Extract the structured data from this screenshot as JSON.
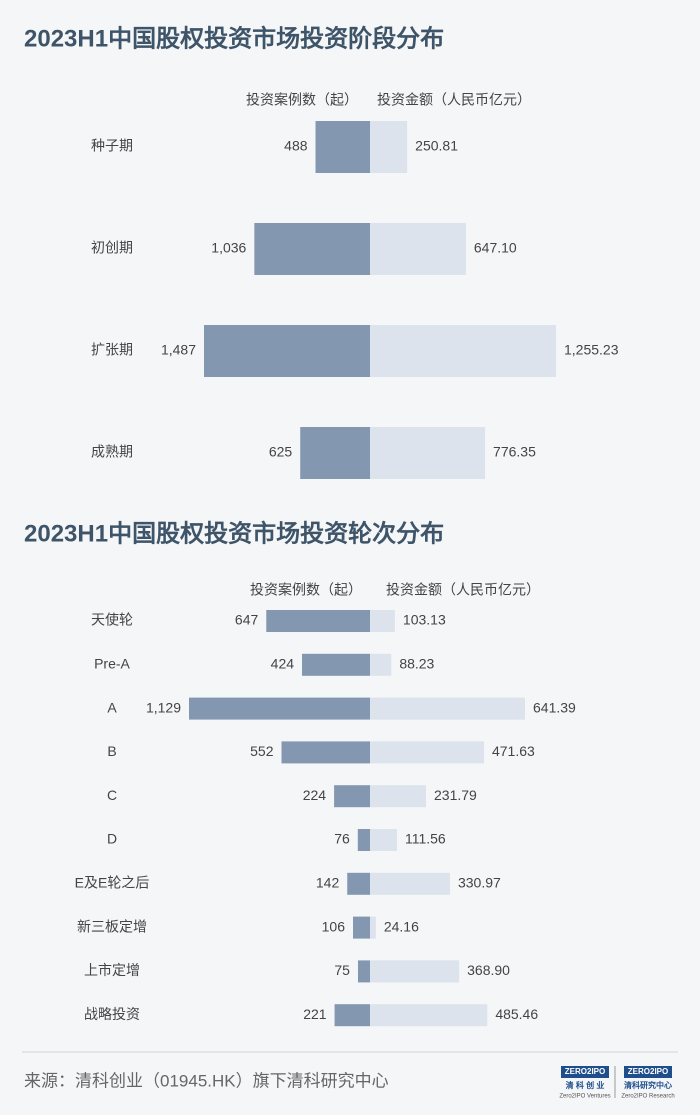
{
  "chart_data": [
    {
      "type": "butterfly",
      "title": "2023H1中国股权投资市场投资阶段分布",
      "categories": [
        "种子期",
        "初创期",
        "扩张期",
        "成熟期"
      ],
      "series": [
        {
          "name": "投资案例数（起）",
          "color": "#8497b0",
          "values": [
            488,
            1036,
            1487,
            625
          ],
          "value_labels": [
            "488",
            "1,036",
            "1,487",
            "625"
          ]
        },
        {
          "name": "投资金额（人民币亿元）",
          "color": "#dde3ec",
          "values": [
            250.81,
            647.1,
            1255.23,
            776.35
          ],
          "value_labels": [
            "250.81",
            "647.10",
            "1,255.23",
            "776.35"
          ]
        }
      ]
    },
    {
      "type": "butterfly",
      "title": "2023H1中国股权投资市场投资轮次分布",
      "categories": [
        "天使轮",
        "Pre-A",
        "A",
        "B",
        "C",
        "D",
        "E及E轮之后",
        "新三板定增",
        "上市定增",
        "战略投资"
      ],
      "series": [
        {
          "name": "投资案例数（起）",
          "color": "#8497b0",
          "values": [
            647,
            424,
            1129,
            552,
            224,
            76,
            142,
            106,
            75,
            221
          ],
          "value_labels": [
            "647",
            "424",
            "1,129",
            "552",
            "224",
            "76",
            "142",
            "106",
            "75",
            "221"
          ]
        },
        {
          "name": "投资金额（人民币亿元）",
          "color": "#dde3ec",
          "values": [
            103.13,
            88.23,
            641.39,
            471.63,
            231.79,
            111.56,
            330.97,
            24.16,
            368.9,
            485.46
          ],
          "value_labels": [
            "103.13",
            "88.23",
            "641.39",
            "471.63",
            "231.79",
            "111.56",
            "330.97",
            "24.16",
            "368.90",
            "485.46"
          ]
        }
      ]
    }
  ],
  "footer": {
    "source": "来源：清科创业（01945.HK）旗下清科研究中心",
    "logos": [
      {
        "mark": "ZERO2IPO",
        "name": "清 科 创 业",
        "sub": "Zero2IPO Ventures"
      },
      {
        "mark": "ZERO2IPO",
        "name": "清科研究中心",
        "sub": "Zero2IPO Research"
      }
    ]
  }
}
